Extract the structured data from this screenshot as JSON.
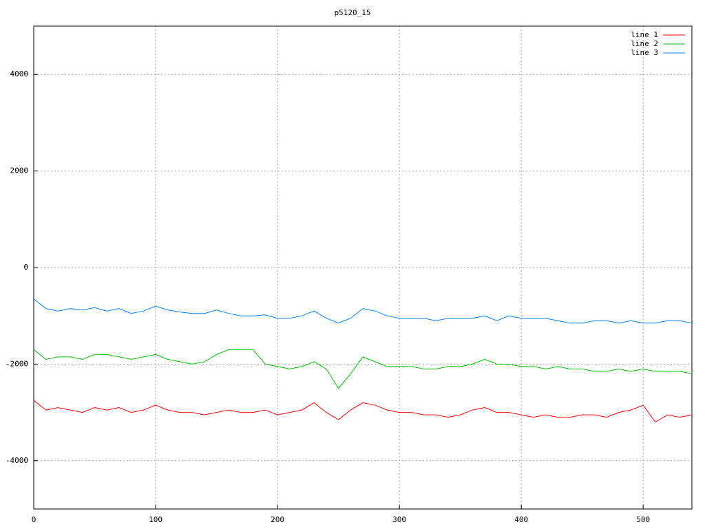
{
  "chart_data": {
    "type": "line",
    "title": "p5120_15",
    "x": [
      0,
      10,
      20,
      30,
      40,
      50,
      60,
      70,
      80,
      90,
      100,
      110,
      120,
      130,
      140,
      150,
      160,
      170,
      180,
      190,
      200,
      210,
      220,
      230,
      240,
      250,
      260,
      270,
      280,
      290,
      300,
      310,
      320,
      330,
      340,
      350,
      360,
      370,
      380,
      390,
      400,
      410,
      420,
      430,
      440,
      450,
      460,
      470,
      480,
      490,
      500,
      510,
      520,
      530,
      540
    ],
    "series": [
      {
        "name": "line 1",
        "color": "#ff0000",
        "values": [
          -2750,
          -2950,
          -2900,
          -2950,
          -3000,
          -2900,
          -2950,
          -2900,
          -3000,
          -2950,
          -2850,
          -2950,
          -3000,
          -3000,
          -3050,
          -3000,
          -2950,
          -3000,
          -3000,
          -2950,
          -3050,
          -3000,
          -2950,
          -2800,
          -3000,
          -3150,
          -2950,
          -2800,
          -2850,
          -2950,
          -3000,
          -3000,
          -3050,
          -3050,
          -3100,
          -3050,
          -2950,
          -2900,
          -3000,
          -3000,
          -3050,
          -3100,
          -3050,
          -3100,
          -3100,
          -3050,
          -3050,
          -3100,
          -3000,
          -2950,
          -2850,
          -3200,
          -3050,
          -3100,
          -3050
        ]
      },
      {
        "name": "line 2",
        "color": "#00c000",
        "values": [
          -1700,
          -1900,
          -1850,
          -1850,
          -1900,
          -1800,
          -1800,
          -1850,
          -1900,
          -1850,
          -1800,
          -1900,
          -1950,
          -2000,
          -1950,
          -1800,
          -1700,
          -1700,
          -1700,
          -2000,
          -2050,
          -2100,
          -2050,
          -1950,
          -2100,
          -2500,
          -2200,
          -1850,
          -1950,
          -2050,
          -2050,
          -2050,
          -2100,
          -2100,
          -2050,
          -2050,
          -2000,
          -1900,
          -2000,
          -2000,
          -2050,
          -2050,
          -2100,
          -2050,
          -2100,
          -2100,
          -2150,
          -2150,
          -2100,
          -2150,
          -2100,
          -2150,
          -2150,
          -2150,
          -2200
        ]
      },
      {
        "name": "line 3",
        "color": "#0080ff",
        "values": [
          -650,
          -850,
          -900,
          -850,
          -880,
          -830,
          -900,
          -850,
          -950,
          -900,
          -800,
          -880,
          -920,
          -950,
          -950,
          -880,
          -950,
          -1000,
          -1000,
          -980,
          -1050,
          -1050,
          -1000,
          -900,
          -1050,
          -1150,
          -1050,
          -850,
          -900,
          -1000,
          -1050,
          -1050,
          -1050,
          -1100,
          -1050,
          -1050,
          -1050,
          -1000,
          -1100,
          -1000,
          -1050,
          -1050,
          -1050,
          -1100,
          -1150,
          -1150,
          -1100,
          -1100,
          -1150,
          -1100,
          -1150,
          -1150,
          -1100,
          -1100,
          -1150
        ]
      }
    ],
    "xlim": [
      0,
      540
    ],
    "xticks": [
      0,
      100,
      200,
      300,
      400,
      500
    ],
    "ylim": [
      -5000,
      5000
    ],
    "yticks": [
      -4000,
      -2000,
      0,
      2000,
      4000
    ],
    "grid": true,
    "legend": "top-right"
  }
}
